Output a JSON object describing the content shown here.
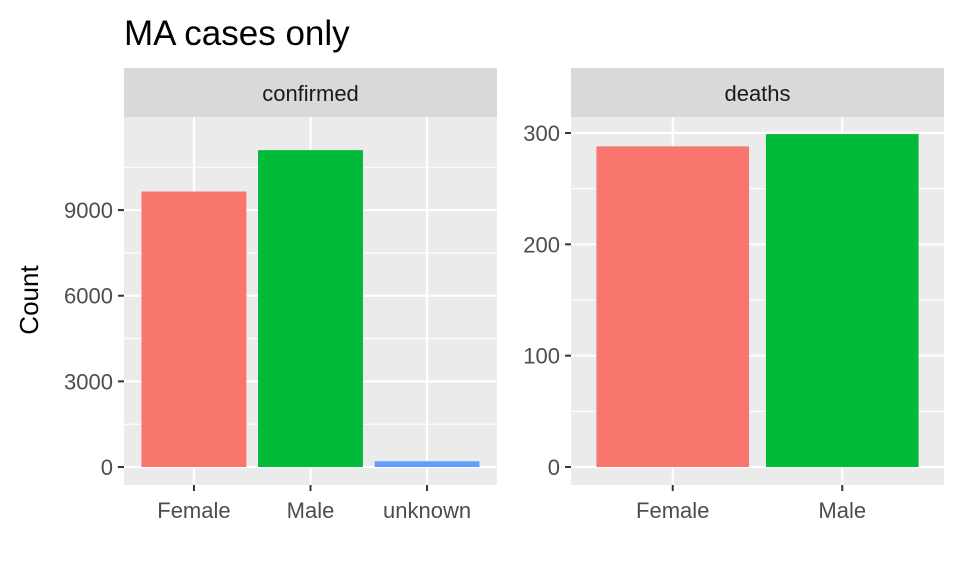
{
  "chart_data": {
    "type": "bar",
    "title": "MA cases only",
    "xlabel": "",
    "ylabel": "Count",
    "grid": true,
    "legend": "none",
    "facets": [
      {
        "strip": "confirmed",
        "categories": [
          "Female",
          "Male",
          "unknown"
        ],
        "values": [
          9650,
          11100,
          200
        ],
        "colors": [
          "#F8766D",
          "#00BA38",
          "#619CFF"
        ],
        "ylim": [
          0,
          11700
        ],
        "yticks": [
          0,
          3000,
          6000,
          9000
        ],
        "ytick_labels": [
          "0",
          "3000",
          "6000",
          "9000"
        ]
      },
      {
        "strip": "deaths",
        "categories": [
          "Female",
          "Male"
        ],
        "values": [
          288,
          299
        ],
        "colors": [
          "#F8766D",
          "#00BA38"
        ],
        "ylim": [
          0,
          300
        ],
        "yticks": [
          0,
          100,
          200,
          300
        ],
        "ytick_labels": [
          "0",
          "100",
          "200",
          "300"
        ]
      }
    ]
  }
}
